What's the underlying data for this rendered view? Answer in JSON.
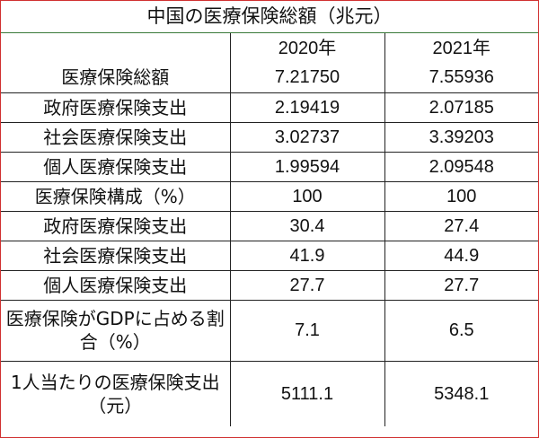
{
  "title": "中国の医療保険総額（兆元）",
  "columns": [
    "",
    "2020年",
    "2021年"
  ],
  "rows": [
    {
      "label": "医療保険総額",
      "v2020": "7.21750",
      "v2021": "7.55936"
    },
    {
      "label": "政府医療保険支出",
      "v2020": "2.19419",
      "v2021": "2.07185"
    },
    {
      "label": "社会医療保険支出",
      "v2020": "3.02737",
      "v2021": "3.39203"
    },
    {
      "label": "個人医療保険支出",
      "v2020": "1.99594",
      "v2021": "2.09548"
    },
    {
      "label": "医療保険構成（%）",
      "v2020": "100",
      "v2021": "100"
    },
    {
      "label": "政府医療保険支出",
      "v2020": "30.4",
      "v2021": "27.4"
    },
    {
      "label": "社会医療保険支出",
      "v2020": "41.9",
      "v2021": "44.9"
    },
    {
      "label": "個人医療保険支出",
      "v2020": "27.7",
      "v2021": "27.7"
    },
    {
      "label": "医療保険がGDPに占める割合（%）",
      "v2020": "7.1",
      "v2021": "6.5"
    },
    {
      "label": "1人当たりの医療保険支出（元）",
      "v2020": "5111.1",
      "v2021": "5348.1"
    }
  ]
}
